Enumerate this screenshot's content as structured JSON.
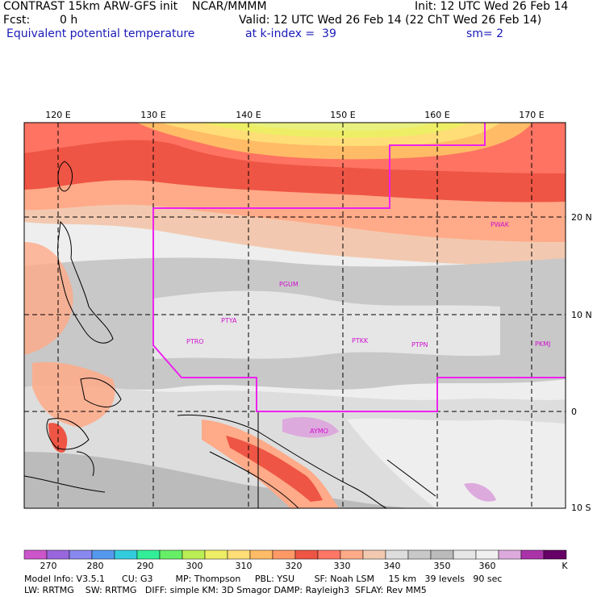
{
  "header": {
    "model_line": "CONTRAST 15km ARW-GFS init    NCAR/MMMM",
    "init_line": "Init: 12 UTC Wed 26 Feb 14",
    "fcst_label": "Fcst:",
    "fcst_value": "0 h",
    "valid_line": "Valid: 12 UTC Wed 26 Feb 14 (22 ChT Wed 26 Feb 14)",
    "field_name": "Equivalent potential temperature",
    "level_line": "at k-index =  39",
    "smooth_line": "sm= 2"
  },
  "map": {
    "lon_labels": [
      "120 E",
      "130 E",
      "140 E",
      "150 E",
      "160 E",
      "170 E"
    ],
    "lat_labels": [
      "20 N",
      "10 N",
      "0",
      "10 S"
    ],
    "stations": [
      "PWAK",
      "PGUM",
      "PTYA",
      "PTRO",
      "PTKK",
      "PTPN",
      "PKMJ",
      "AYMO"
    ]
  },
  "colorbar": {
    "colors": [
      "#cc55cc",
      "#9966dd",
      "#8888ee",
      "#5599ee",
      "#33ccdd",
      "#33ee99",
      "#66ee66",
      "#bbee55",
      "#eeee66",
      "#ffdd77",
      "#ffbb66",
      "#ff9966",
      "#ee5544",
      "#ff7766",
      "#ffaa88",
      "#f2c9b0",
      "#dddddd",
      "#c8c8c8",
      "#bbbbbb",
      "#e6e6e6",
      "#f0f0f0",
      "#ddaadd",
      "#aa33aa",
      "#660066"
    ],
    "tick_labels": [
      "270",
      "280",
      "290",
      "300",
      "310",
      "320",
      "330",
      "340",
      "350",
      "360"
    ],
    "unit": "K"
  },
  "footer": {
    "line1": "Model Info: V3.5.1      CU: G3        MP: Thompson     PBL: YSU       SF: Noah LSM     15 km   39 levels   90 sec",
    "line2": "LW: RRTMG    SW: RRTMG   DIFF: simple KM: 3D Smagor DAMP: Rayleigh3  SFLAY: Rev MM5"
  }
}
